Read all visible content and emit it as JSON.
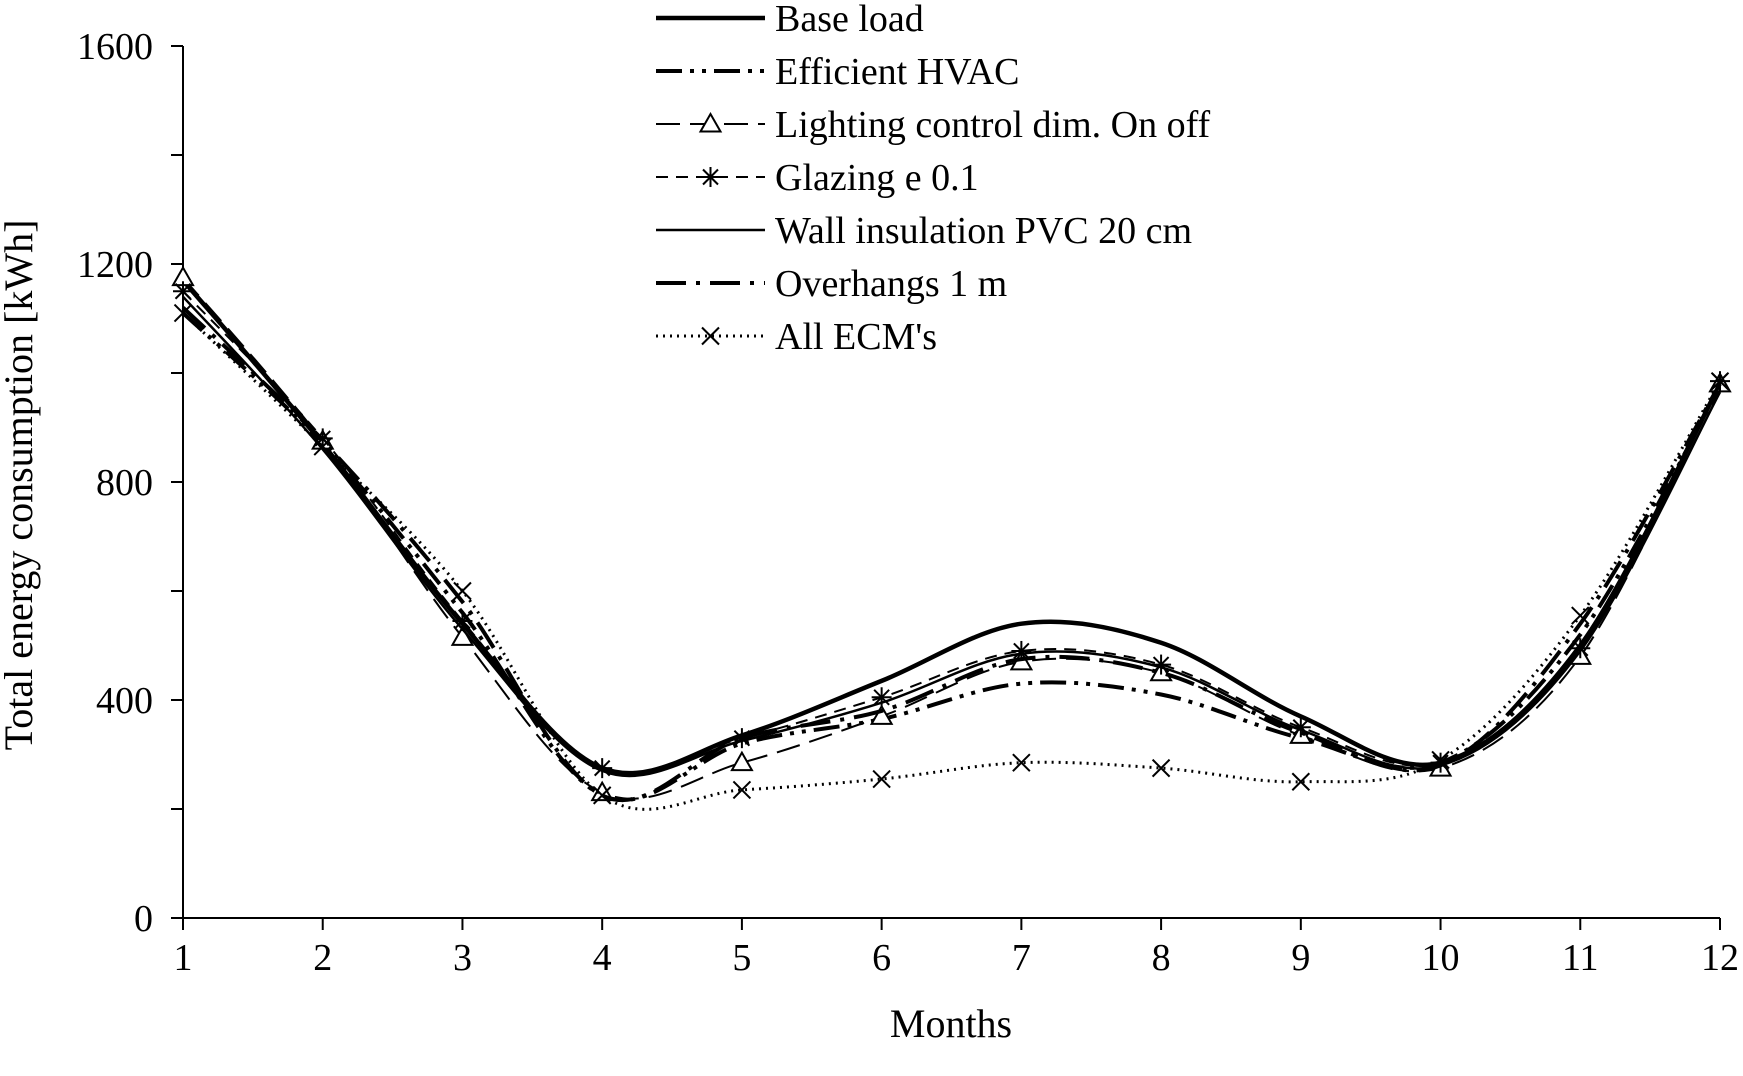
{
  "chart_data": {
    "type": "line",
    "title": "",
    "xlabel": "Months",
    "ylabel": "Total energy consumption [kWh]",
    "x": [
      1,
      2,
      3,
      4,
      5,
      6,
      7,
      8,
      9,
      10,
      11,
      12
    ],
    "xlim": [
      1,
      12
    ],
    "ylim": [
      0,
      1600
    ],
    "yticks": [
      0,
      400,
      800,
      1200,
      1600
    ],
    "y_minor_step": 200,
    "grid": false,
    "legend_position": "top-center",
    "series": [
      {
        "name": "Base load",
        "values": [
          1170,
          870,
          540,
          275,
          335,
          435,
          540,
          505,
          370,
          285,
          500,
          980
        ],
        "style": "solid-thick",
        "marker": ""
      },
      {
        "name": "Efficient HVAC",
        "values": [
          1110,
          870,
          560,
          225,
          320,
          365,
          430,
          410,
          330,
          285,
          520,
          975
        ],
        "style": "dash-dot-dot",
        "marker": ""
      },
      {
        "name": "Lighting control dim. On off",
        "values": [
          1175,
          875,
          515,
          230,
          285,
          370,
          470,
          450,
          335,
          275,
          480,
          980
        ],
        "style": "long-dash",
        "marker": "triangle"
      },
      {
        "name": "Glazing e 0.1",
        "values": [
          1150,
          880,
          545,
          275,
          330,
          405,
          490,
          465,
          350,
          285,
          495,
          985
        ],
        "style": "dash",
        "marker": "asterisk"
      },
      {
        "name": "Wall insulation PVC 20 cm",
        "values": [
          1140,
          860,
          530,
          270,
          325,
          395,
          485,
          460,
          345,
          280,
          490,
          965
        ],
        "style": "solid-thin",
        "marker": ""
      },
      {
        "name": "Overhangs 1 m",
        "values": [
          1120,
          875,
          580,
          225,
          330,
          380,
          475,
          450,
          340,
          280,
          540,
          980
        ],
        "style": "long-dash-dot",
        "marker": ""
      },
      {
        "name": "All ECM's",
        "values": [
          1110,
          865,
          600,
          225,
          235,
          255,
          285,
          275,
          250,
          290,
          555,
          985
        ],
        "style": "dotted",
        "marker": "x"
      }
    ]
  }
}
